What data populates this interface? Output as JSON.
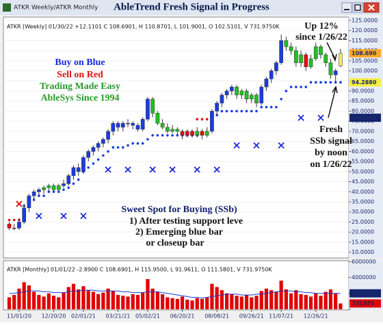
{
  "window_title": "ATKR Weekly/ATKR Monthly",
  "title": "AbleTrend Fresh Signal in Progress",
  "annotations": {
    "left": [
      "Buy on Blue",
      "Sell on Red",
      "Trading Made Easy",
      "AbleSys Since 1994"
    ],
    "up": [
      "Up 12%",
      "since 1/26/22"
    ],
    "fresh": [
      "Fresh",
      "SSb signal",
      "by noon",
      "on 1/26/22"
    ],
    "sweet": [
      "Sweet Spot for Buying (SSb)",
      "1) After testing support leve",
      "2) Emerging blue bar",
      "or closeup bar"
    ]
  },
  "chart_data": [
    {
      "type": "candlestick",
      "header": "ATKR [Weekly] 01/30/22 +12.1101 C 108.6901, H 110.8701, L 101.9001, O 102.5101, V 731.9750K",
      "ylim": [
        7.5,
        127
      ],
      "yticks": [
        {
          "value": 10,
          "label": "10.0000"
        },
        {
          "value": 15,
          "label": "15.0000"
        },
        {
          "value": 20,
          "label": "20.0000"
        },
        {
          "value": 25,
          "label": "25.0000"
        },
        {
          "value": 30,
          "label": "30.0000"
        },
        {
          "value": 35,
          "label": "35.0000"
        },
        {
          "value": 40,
          "label": "40.0000"
        },
        {
          "value": 45,
          "label": "45.0000"
        },
        {
          "value": 50,
          "label": "50.0000"
        },
        {
          "value": 55,
          "label": "55.0000"
        },
        {
          "value": 60,
          "label": "60.0000"
        },
        {
          "value": 65,
          "label": "65.0000"
        },
        {
          "value": 70,
          "label": "70.0000"
        },
        {
          "value": 75,
          "label": "75.0000"
        },
        {
          "value": 80,
          "label": "80.0000"
        },
        {
          "value": 85,
          "label": "85.0000"
        },
        {
          "value": 90,
          "label": "90.0000"
        },
        {
          "value": 95,
          "label": "95.0000"
        },
        {
          "value": 100,
          "label": "100.0000"
        },
        {
          "value": 105,
          "label": "105.0000"
        },
        {
          "value": 110,
          "label": "110.0000"
        },
        {
          "value": 115,
          "label": "115.0000"
        },
        {
          "value": 120,
          "label": "120.0000"
        },
        {
          "value": 125,
          "label": "125.0000"
        }
      ],
      "candles": [
        [
          24,
          25,
          21,
          22
        ],
        [
          22,
          24,
          21,
          22
        ],
        [
          22,
          27,
          21,
          25
        ],
        [
          25,
          34,
          24,
          32
        ],
        [
          32,
          39,
          30,
          38
        ],
        [
          38,
          41,
          36,
          40
        ],
        [
          40,
          42,
          38,
          41
        ],
        [
          41,
          43,
          39,
          42
        ],
        [
          42,
          44,
          40,
          43
        ],
        [
          43,
          44,
          40,
          41
        ],
        [
          41,
          44,
          40,
          43
        ],
        [
          43,
          46,
          42,
          44
        ],
        [
          44,
          49,
          43,
          48
        ],
        [
          48,
          53,
          46,
          52
        ],
        [
          52,
          54,
          48,
          50
        ],
        [
          50,
          58,
          49,
          57
        ],
        [
          57,
          61,
          55,
          60
        ],
        [
          60,
          63,
          58,
          62
        ],
        [
          62,
          65,
          60,
          64
        ],
        [
          64,
          67,
          62,
          66
        ],
        [
          66,
          71,
          64,
          70
        ],
        [
          70,
          75,
          68,
          74
        ],
        [
          74,
          75,
          70,
          72
        ],
        [
          72,
          75,
          70,
          74
        ],
        [
          74,
          76,
          72,
          74
        ],
        [
          74,
          75,
          71,
          73
        ],
        [
          73,
          74,
          70,
          71
        ],
        [
          71,
          77,
          70,
          76
        ],
        [
          76,
          87,
          75,
          86
        ],
        [
          86,
          87,
          77,
          79
        ],
        [
          79,
          80,
          73,
          74
        ],
        [
          74,
          76,
          71,
          72
        ],
        [
          72,
          74,
          69,
          70
        ],
        [
          70,
          73,
          69,
          71
        ],
        [
          71,
          72,
          68,
          70
        ],
        [
          70,
          71,
          66,
          68
        ],
        [
          68,
          71,
          67,
          70
        ],
        [
          70,
          71,
          67,
          68
        ],
        [
          68,
          72,
          67,
          70
        ],
        [
          70,
          71,
          66,
          68
        ],
        [
          68,
          72,
          67,
          70
        ],
        [
          70,
          81,
          69,
          80
        ],
        [
          80,
          85,
          78,
          84
        ],
        [
          84,
          89,
          82,
          88
        ],
        [
          88,
          91,
          86,
          90
        ],
        [
          90,
          93,
          88,
          92
        ],
        [
          92,
          93,
          86,
          88
        ],
        [
          88,
          91,
          86,
          90
        ],
        [
          90,
          91,
          84,
          86
        ],
        [
          86,
          89,
          84,
          88
        ],
        [
          88,
          89,
          82,
          84
        ],
        [
          84,
          93,
          83,
          92
        ],
        [
          92,
          97,
          90,
          96
        ],
        [
          96,
          101,
          94,
          100
        ],
        [
          100,
          105,
          98,
          104
        ],
        [
          104,
          118,
          103,
          115
        ],
        [
          115,
          117,
          110,
          112
        ],
        [
          112,
          114,
          108,
          110
        ],
        [
          110,
          112,
          102,
          104
        ],
        [
          104,
          110,
          102,
          108
        ],
        [
          108,
          109,
          100,
          102
        ],
        [
          102,
          108,
          101,
          106
        ],
        [
          106,
          114,
          105,
          112
        ],
        [
          112,
          113,
          106,
          108
        ],
        [
          108,
          109,
          102,
          104
        ],
        [
          104,
          106,
          96,
          98
        ],
        [
          98,
          101,
          94,
          100
        ],
        [
          102.5101,
          110.8701,
          101.9001,
          108.6901
        ]
      ],
      "candle_colors": [
        "#e01010",
        "#e01010",
        "#1a3ce0",
        "#1a3ce0",
        "#1a3ce0",
        "#1a3ce0",
        "#1a3ce0",
        "#22c022",
        "#22c022",
        "#22c022",
        "#22c022",
        "#1a3ce0",
        "#1a3ce0",
        "#1a3ce0",
        "#1a3ce0",
        "#1a3ce0",
        "#1a3ce0",
        "#1a3ce0",
        "#1a3ce0",
        "#1a3ce0",
        "#1a3ce0",
        "#1a3ce0",
        "#1a3ce0",
        "#1a3ce0",
        "#1a3ce0",
        "#1a3ce0",
        "#1a3ce0",
        "#1a3ce0",
        "#1a3ce0",
        "#22c022",
        "#22c022",
        "#22c022",
        "#22c022",
        "#22c022",
        "#22c022",
        "#e01010",
        "#e01010",
        "#e01010",
        "#22c022",
        "#e01010",
        "#22c022",
        "#1a3ce0",
        "#1a3ce0",
        "#1a3ce0",
        "#1a3ce0",
        "#1a3ce0",
        "#22c022",
        "#22c022",
        "#22c022",
        "#22c022",
        "#22c022",
        "#1a3ce0",
        "#1a3ce0",
        "#1a3ce0",
        "#1a3ce0",
        "#1a3ce0",
        "#22c022",
        "#22c022",
        "#22c022",
        "#22c022",
        "#e01010",
        "#22c022",
        "#22c022",
        "#22c022",
        "#22c022",
        "#22c022",
        "#1a3ce0",
        "#f4e870"
      ],
      "stops": [
        {
          "color": "#1a3ce0",
          "values": [
            null,
            null,
            null,
            33,
            35,
            36,
            38,
            38,
            40,
            40,
            40,
            41,
            42,
            44,
            46,
            50,
            52,
            54,
            56,
            58,
            60,
            62,
            62,
            62,
            63,
            64,
            64,
            64,
            66,
            68,
            68,
            68,
            68,
            68,
            68,
            68,
            68,
            68,
            68,
            null,
            null,
            null,
            78,
            80,
            80,
            80,
            80,
            80,
            80,
            80,
            80,
            82,
            82,
            82,
            82,
            86,
            90,
            92,
            92,
            92,
            92,
            94.288,
            94.288,
            94.288,
            94.288,
            94.288,
            94.288,
            94.288
          ]
        },
        {
          "color": "#e01010",
          "values": [
            26,
            26,
            26,
            26,
            null,
            null,
            null,
            null,
            null,
            null,
            null,
            null,
            null,
            null,
            null,
            null,
            null,
            null,
            null,
            null,
            null,
            null,
            null,
            null,
            null,
            null,
            null,
            null,
            null,
            null,
            null,
            null,
            null,
            null,
            null,
            null,
            null,
            null,
            76,
            76,
            76,
            null,
            null,
            null,
            null,
            null,
            null,
            null,
            null,
            null,
            null,
            null,
            null,
            null,
            null,
            null,
            null,
            null,
            null,
            null,
            null,
            null,
            null,
            null,
            null,
            null,
            null,
            null
          ]
        }
      ],
      "signals": [
        {
          "color": "#e01010",
          "x": [
            2
          ],
          "values": [
            34
          ]
        },
        {
          "color": "#1a2ad8",
          "x": [
            6,
            11,
            15,
            20,
            24,
            29,
            33,
            38,
            42,
            46,
            50,
            55,
            59,
            63
          ],
          "values": [
            28,
            28,
            28,
            51,
            51,
            51,
            51,
            51,
            51,
            63,
            63,
            63,
            76.7198,
            76.7198
          ]
        }
      ],
      "price_labels": [
        {
          "value": 108.69,
          "label": "108.690",
          "color": "#f7a928"
        },
        {
          "value": 94.288,
          "label": "94.2880",
          "color": "#f5ee40"
        },
        {
          "value": 76.7198,
          "label": "76.7198",
          "color": "#14246e"
        }
      ]
    },
    {
      "type": "bar",
      "header": "ATKR [Monthly] 01/01/22 -2.8900 C 108.6901, H 115.9500, L 91.9611, O 111.5801, V 731.9750K",
      "categories": [
        null,
        null,
        "11/01/20",
        null,
        null,
        null,
        null,
        null,
        null,
        "12/20/20",
        null,
        null,
        null,
        null,
        null,
        "02/01/21",
        null,
        null,
        null,
        null,
        null,
        null,
        "03/21/21",
        null,
        null,
        null,
        null,
        null,
        "05/02/21",
        null,
        null,
        null,
        null,
        null,
        null,
        "06/20/21",
        null,
        null,
        null,
        null,
        null,
        null,
        "08/08/21",
        null,
        null,
        null,
        null,
        null,
        null,
        "09/26/21",
        null,
        null,
        null,
        null,
        null,
        "11/07/21",
        null,
        null,
        null,
        null,
        null,
        null,
        "12/26/21",
        null,
        null,
        null,
        null,
        null
      ],
      "ylim": [
        0,
        6200000
      ],
      "yticks": [
        0,
        2000000,
        4000000,
        6000000
      ],
      "color": "#e00000",
      "values": [
        1500000,
        1800000,
        2600000,
        3400000,
        3000000,
        2200000,
        1800000,
        1600000,
        2000000,
        1700000,
        1500000,
        2100000,
        2800000,
        3200000,
        2500000,
        2900000,
        2400000,
        2200000,
        1900000,
        2100000,
        2600000,
        2300000,
        1800000,
        1700000,
        1600000,
        1900000,
        1800000,
        2100000,
        3800000,
        2600000,
        2200000,
        1900000,
        1500000,
        1400000,
        1300000,
        1600000,
        1200000,
        1100000,
        1400000,
        1300000,
        1500000,
        3200000,
        2800000,
        2400000,
        2000000,
        1900000,
        1700000,
        1600000,
        1800000,
        1500000,
        1700000,
        2300000,
        2600000,
        2400000,
        2200000,
        3600000,
        2500000,
        2000000,
        2400000,
        1900000,
        1800000,
        1600000,
        2000000,
        1700000,
        2200000,
        2500000,
        2000000,
        731975
      ],
      "line_color": "#1a3cd0",
      "line": [
        2000000,
        2000000,
        2100000,
        2200000,
        2300000,
        2300000,
        2300000,
        2200000,
        2200000,
        2100000,
        2100000,
        2100000,
        2200000,
        2300000,
        2300000,
        2400000,
        2400000,
        2400000,
        2300000,
        2300000,
        2300000,
        2300000,
        2300000,
        2200000,
        2200000,
        2100000,
        2100000,
        2100000,
        2200000,
        2200000,
        2200000,
        2100000,
        2000000,
        1900000,
        1800000,
        1700000,
        1600000,
        1500000,
        1500000,
        1400000,
        1500000,
        1600000,
        1700000,
        1800000,
        1900000,
        1900000,
        1900000,
        1800000,
        1800000,
        1800000,
        1900000,
        1900000,
        2000000,
        2100000,
        2200000,
        2300000,
        2300000,
        2300000,
        2200000,
        2200000,
        2100000,
        2100000,
        2000000,
        2000000,
        2000000,
        2000000,
        2000000,
        2004915
      ]
    }
  ]
}
